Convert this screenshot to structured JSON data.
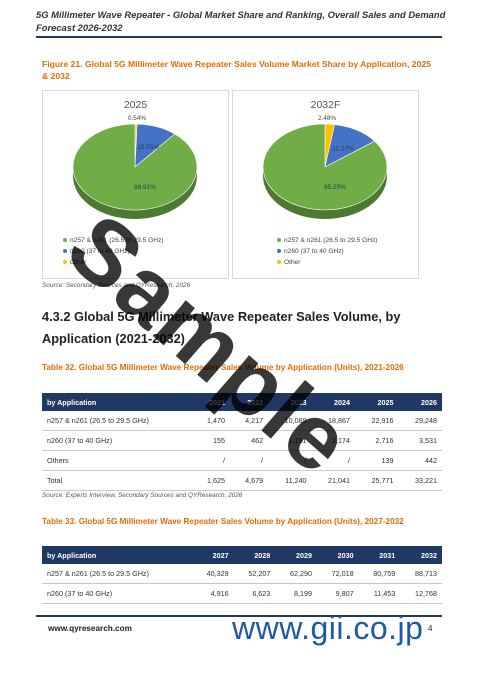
{
  "header": {
    "title": "5G Millimeter Wave Repeater - Global Market Share and Ranking, Overall Sales and Demand Forecast 2026-2032"
  },
  "figure": {
    "title": "Figure 21.   Global 5G Millimeter Wave Repeater Sales Volume Market Share by Application, 2025 & 2032",
    "source": "Source: Secondary Sources and QYResearch, 2026",
    "legend": [
      "n257 & n261 (26.5 to 29.5 GHz)",
      "n260 (37 to 40 GHz)",
      "Other"
    ],
    "colors": [
      "#70ad47",
      "#4472c4",
      "#ffc000"
    ]
  },
  "chart_data": [
    {
      "type": "pie",
      "title": "2025",
      "labels": [
        "n257 & n261 (26.5 to 29.5 GHz)",
        "n260 (37 to 40 GHz)",
        "Other"
      ],
      "values": [
        88.91,
        10.55,
        0.54
      ],
      "value_labels": [
        "88.91%",
        "10.55%",
        "0.54%"
      ],
      "legend": "bottom-left"
    },
    {
      "type": "pie",
      "title": "2032F",
      "labels": [
        "n257 & n261 (26.5 to 29.5 GHz)",
        "n260 (37 to 40 GHz)",
        "Other"
      ],
      "values": [
        85.25,
        12.27,
        2.48
      ],
      "value_labels": [
        "85.25%",
        "12.27%",
        "2.48%"
      ],
      "legend": "bottom-left"
    }
  ],
  "section": {
    "heading": "4.3.2 Global 5G Millimeter Wave Repeater Sales Volume, by Application (2021-2032)"
  },
  "table32": {
    "title": "Table 32.   Global 5G Millimeter Wave Repeater Sales Volume by Application (Units), 2021-2026",
    "headers": [
      "by Application",
      "2021",
      "2022",
      "2023",
      "2024",
      "2025",
      "2026"
    ],
    "rows": [
      [
        "n257 & n261 (26.5 to 29.5 GHz)",
        "1,470",
        "4,217",
        "10,089",
        "18,867",
        "22,916",
        "29,248"
      ],
      [
        "n260 (37 to 40 GHz)",
        "155",
        "462",
        "1,151",
        "2,174",
        "2,716",
        "3,531"
      ],
      [
        "Others",
        "/",
        "/",
        "/",
        "/",
        "139",
        "442"
      ],
      [
        "Total",
        "1,625",
        "4,679",
        "11,240",
        "21,041",
        "25,771",
        "33,221"
      ]
    ],
    "source": "Source: Experts Interview, Secondary Sources and QYResearch, 2026"
  },
  "table33": {
    "title": "Table 33.   Global 5G Millimeter Wave Repeater Sales Volume by Application (Units), 2027-2032",
    "headers": [
      "by Application",
      "2027",
      "2028",
      "2029",
      "2030",
      "2031",
      "2032"
    ],
    "rows": [
      [
        "n257 & n261 (26.5 to 29.5 GHz)",
        "40,329",
        "52,207",
        "62,290",
        "72,018",
        "80,759",
        "88,713"
      ],
      [
        "n260 (37 to 40 GHz)",
        "4,916",
        "6,623",
        "8,199",
        "9,807",
        "11,453",
        "12,768"
      ]
    ]
  },
  "footer": {
    "url": "www.qyresearch.com",
    "page": "4"
  },
  "watermark": {
    "text": "Sample",
    "logo": "www.gii.co.jp"
  }
}
